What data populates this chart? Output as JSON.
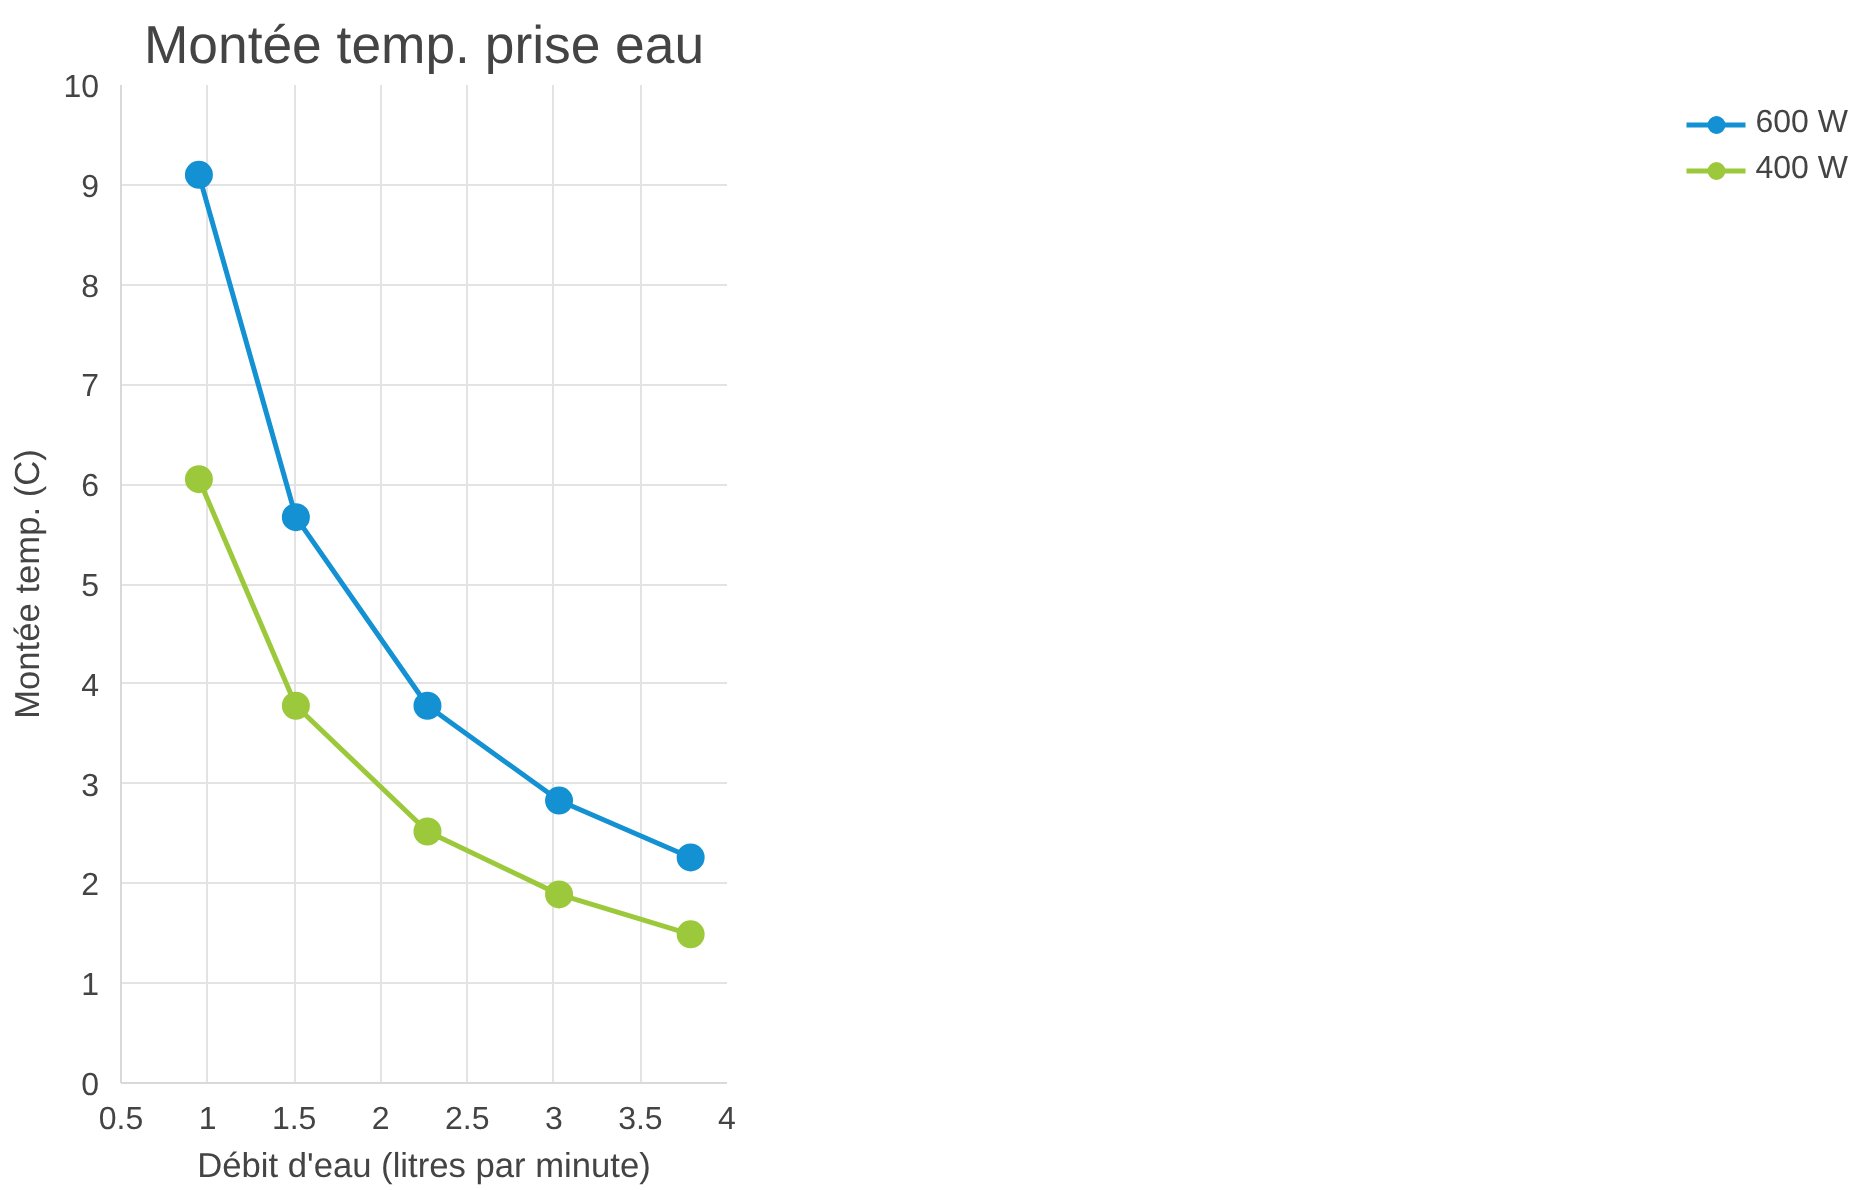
{
  "chart_data": {
    "type": "line",
    "title": "Montée temp. prise eau",
    "xlabel": "Débit d'eau (litres par minute)",
    "ylabel": "Montée temp. (C)",
    "xlim": [
      0.5,
      4
    ],
    "xticks": [
      0.5,
      1,
      1.5,
      2,
      2.5,
      3,
      3.5,
      4
    ],
    "ylim": [
      0,
      10
    ],
    "yticks": [
      0,
      1,
      2,
      3,
      4,
      5,
      6,
      7,
      8,
      9,
      10
    ],
    "grid": true,
    "legend": "right",
    "marker": "circle",
    "line_style": "solid",
    "series": [
      {
        "name": "600 W",
        "color": "#1391d3",
        "x": [
          0.95,
          1.51,
          2.27,
          3.03,
          3.79
        ],
        "values": [
          9.1,
          5.67,
          3.78,
          2.83,
          2.26
        ]
      },
      {
        "name": "400 W",
        "color": "#9cc93b",
        "x": [
          0.95,
          1.51,
          2.27,
          3.03,
          3.79
        ],
        "values": [
          6.05,
          3.78,
          2.52,
          1.89,
          1.49
        ]
      }
    ]
  }
}
